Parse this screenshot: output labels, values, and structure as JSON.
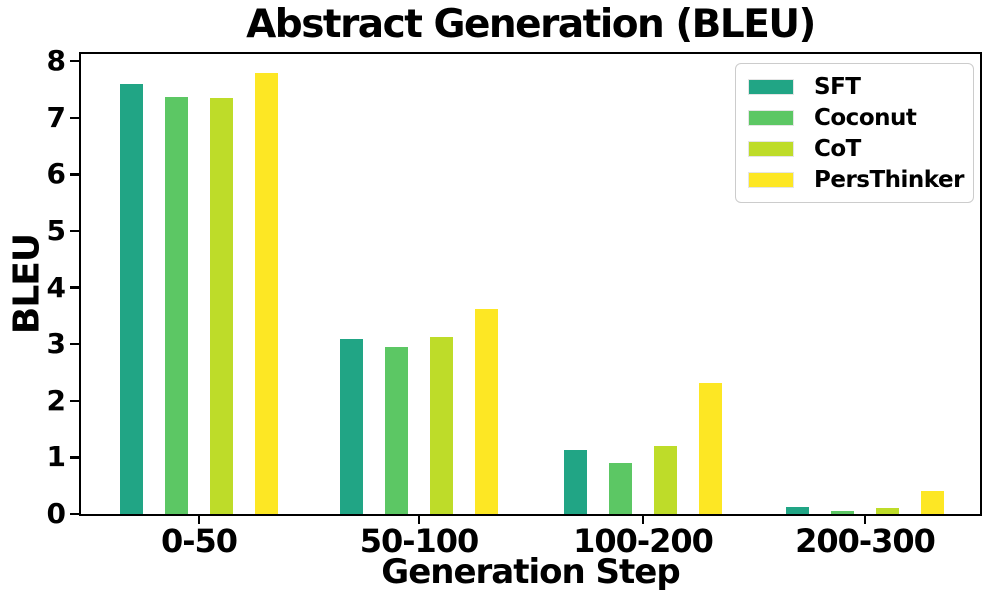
{
  "chart_data": {
    "type": "bar",
    "title": "Abstract Generation (BLEU)",
    "xlabel": "Generation Step",
    "ylabel": "BLEU",
    "categories": [
      "0-50",
      "50-100",
      "100-200",
      "200-300"
    ],
    "series": [
      {
        "name": "SFT",
        "color": "#21a585",
        "values": [
          7.6,
          3.1,
          1.13,
          0.13
        ]
      },
      {
        "name": "Coconut",
        "color": "#5cc764",
        "values": [
          7.36,
          2.95,
          0.91,
          0.05
        ]
      },
      {
        "name": "CoT",
        "color": "#bedc29",
        "values": [
          7.35,
          3.12,
          1.21,
          0.11
        ]
      },
      {
        "name": "PersThinker",
        "color": "#fde724",
        "values": [
          7.8,
          3.62,
          2.32,
          0.4
        ]
      }
    ],
    "ylim": [
      0,
      8
    ],
    "yticks": [
      0,
      1,
      2,
      3,
      4,
      5,
      6,
      7,
      8
    ],
    "legend_position": "upper right",
    "grid": false
  },
  "colors": {
    "axis": "#000000",
    "text": "#000000",
    "background": "#ffffff",
    "legend_border": "#cccccc"
  }
}
